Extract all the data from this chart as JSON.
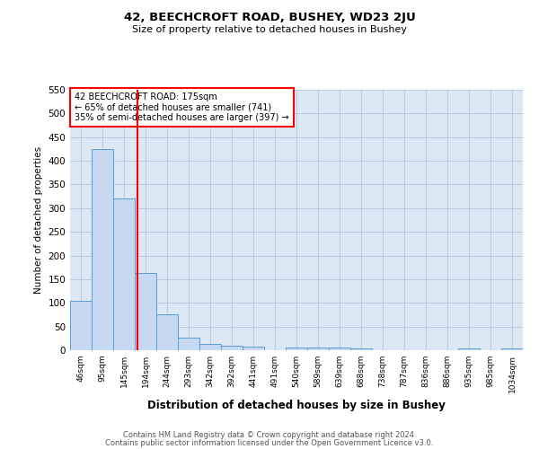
{
  "title1": "42, BEECHCROFT ROAD, BUSHEY, WD23 2JU",
  "title2": "Size of property relative to detached houses in Bushey",
  "xlabel": "Distribution of detached houses by size in Bushey",
  "ylabel": "Number of detached properties",
  "bin_labels": [
    "46sqm",
    "95sqm",
    "145sqm",
    "194sqm",
    "244sqm",
    "293sqm",
    "342sqm",
    "392sqm",
    "441sqm",
    "491sqm",
    "540sqm",
    "589sqm",
    "639sqm",
    "688sqm",
    "738sqm",
    "787sqm",
    "836sqm",
    "886sqm",
    "935sqm",
    "985sqm",
    "1034sqm"
  ],
  "bar_heights": [
    105,
    425,
    320,
    163,
    75,
    27,
    13,
    10,
    8,
    0,
    5,
    5,
    5,
    4,
    0,
    0,
    0,
    0,
    4,
    0,
    3
  ],
  "bar_color": "#c6d9f0",
  "bar_edge_color": "#5b9bd5",
  "grid_color": "#b0c4de",
  "annotation_text": "42 BEECHCROFT ROAD: 175sqm\n← 65% of detached houses are smaller (741)\n35% of semi-detached houses are larger (397) →",
  "annotation_box_color": "white",
  "annotation_box_edge_color": "red",
  "ylim": [
    0,
    550
  ],
  "yticks": [
    0,
    50,
    100,
    150,
    200,
    250,
    300,
    350,
    400,
    450,
    500,
    550
  ],
  "footer1": "Contains HM Land Registry data © Crown copyright and database right 2024.",
  "footer2": "Contains public sector information licensed under the Open Government Licence v3.0.",
  "bg_color": "white",
  "plot_bg_color": "#dce9f5"
}
